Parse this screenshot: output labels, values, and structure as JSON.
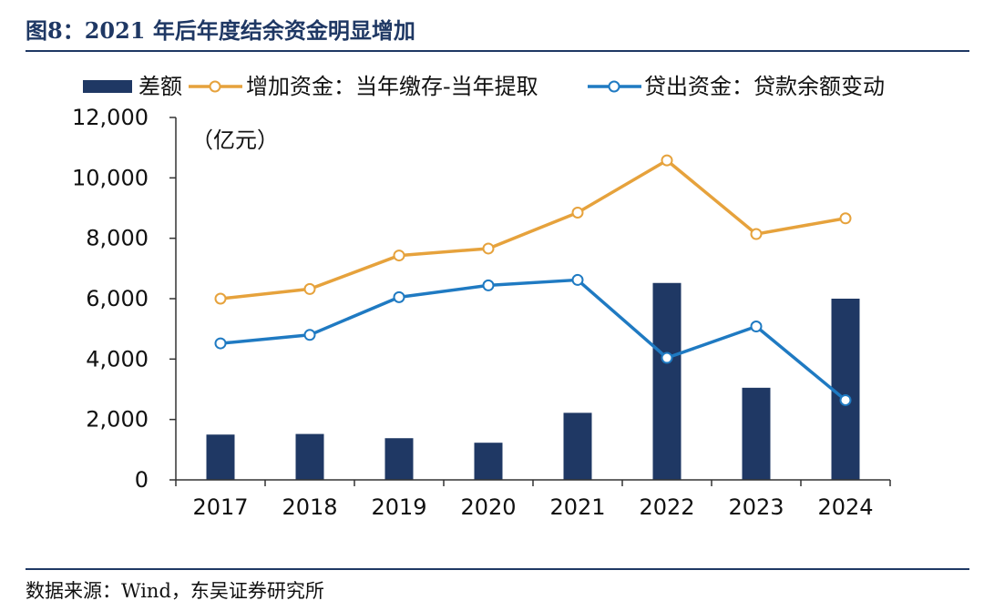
{
  "figure": {
    "title": "图8：2021 年后年度结余资金明显增加",
    "source": "数据来源：Wind，东吴证券研究所"
  },
  "colors": {
    "bar": "#1f3864",
    "orange": "#e6a23c",
    "blue": "#1f7ac2"
  },
  "chart_data": {
    "type": "bar",
    "title": "图8：2021 年后年度结余资金明显增加",
    "unit_label": "（亿元）",
    "categories": [
      "2017",
      "2018",
      "2019",
      "2020",
      "2021",
      "2022",
      "2023",
      "2024"
    ],
    "ylim": [
      0,
      12000
    ],
    "yticks": [
      0,
      2000,
      4000,
      6000,
      8000,
      10000,
      12000
    ],
    "ytick_labels": [
      "0",
      "2,000",
      "4,000",
      "6,000",
      "8,000",
      "10,000",
      "12,000"
    ],
    "legend_position": "top",
    "series": [
      {
        "name": "差额",
        "type": "bar",
        "values": [
          1500,
          1520,
          1380,
          1230,
          2220,
          6520,
          3050,
          6000
        ]
      },
      {
        "name": "增加资金：当年缴存-当年提取",
        "type": "line",
        "color": "orange",
        "values": [
          6000,
          6320,
          7430,
          7660,
          8850,
          10580,
          8140,
          8660
        ]
      },
      {
        "name": "贷出资金：贷款余额变动",
        "type": "line",
        "color": "blue",
        "values": [
          4520,
          4800,
          6050,
          6440,
          6620,
          4040,
          5080,
          2640
        ]
      }
    ]
  }
}
